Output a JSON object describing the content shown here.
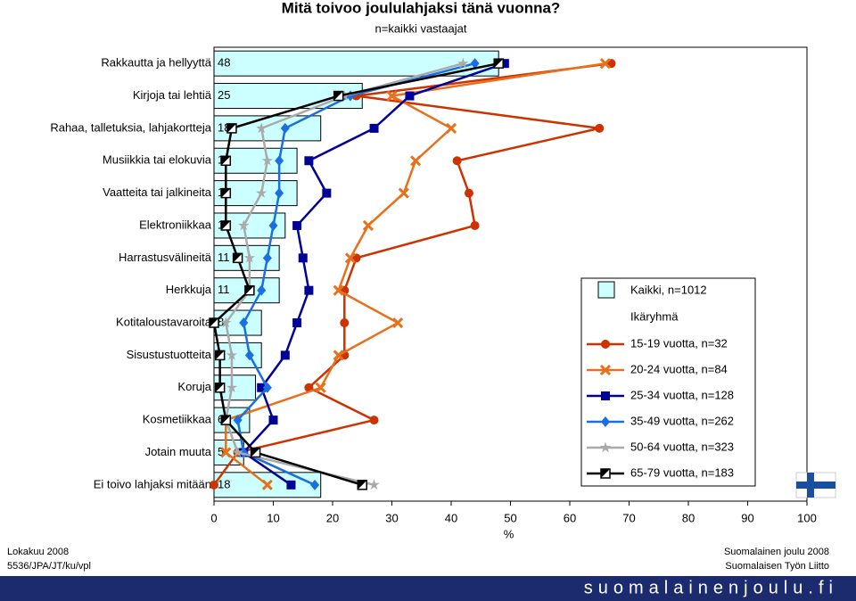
{
  "chart_data": {
    "type": "bar_profile",
    "title": "Mitä toivoo joululahjaksi tänä vuonna?",
    "subtitle": "n=kaikki vastaajat",
    "categories": [
      "Rakkautta ja hellyyttä",
      "Kirjoja tai lehtiä",
      "Rahaa, talletuksia, lahjakortteja",
      "Musiikkia tai elokuvia",
      "Vaatteita tai jalkineita",
      "Elektroniikkaa",
      "Harrastusvälineitä",
      "Herkkuja",
      "Kotitaloustavaroita",
      "Sisustustuotteita",
      "Koruja",
      "Kosmetiikkaa",
      "Jotain muuta",
      "Ei toivo lahjaksi mitään"
    ],
    "bar_series": {
      "name": "Kaikki, n=1012",
      "color": "#ccffff",
      "values": [
        48,
        25,
        18,
        14,
        14,
        12,
        11,
        11,
        8,
        8,
        7,
        6,
        5,
        18
      ]
    },
    "legend_title": "Ikäryhmä",
    "series": [
      {
        "name": "15-19 vuotta, n=32",
        "color": "#cc3300",
        "marker": "circle",
        "values": [
          67,
          24,
          65,
          41,
          43,
          44,
          24,
          22,
          22,
          22,
          16,
          27,
          4,
          0
        ]
      },
      {
        "name": "20-24 vuotta, n=84",
        "color": "#e8701a",
        "marker": "x",
        "values": [
          66,
          30,
          40,
          34,
          32,
          26,
          23,
          21,
          31,
          21,
          18,
          2,
          2,
          9
        ]
      },
      {
        "name": "25-34 vuotta, n=128",
        "color": "#000099",
        "marker": "square",
        "values": [
          49,
          33,
          27,
          16,
          19,
          14,
          15,
          16,
          14,
          12,
          8,
          10,
          5,
          13
        ]
      },
      {
        "name": "35-49 vuotta, n=262",
        "color": "#1a6fe0",
        "marker": "diamond",
        "values": [
          44,
          23,
          12,
          11,
          11,
          10,
          9,
          8,
          5,
          6,
          9,
          4,
          5,
          17
        ]
      },
      {
        "name": "50-64 vuotta, n=323",
        "color": "#aaaaaa",
        "marker": "star",
        "values": [
          42,
          22,
          8,
          9,
          8,
          5,
          6,
          6,
          2,
          3,
          3,
          2,
          4,
          27
        ]
      },
      {
        "name": "65-79 vuotta, n=183",
        "color": "#000000",
        "marker": "halfsquare",
        "values": [
          48,
          21,
          3,
          2,
          2,
          2,
          4,
          6,
          0,
          1,
          1,
          2,
          7,
          25
        ]
      }
    ],
    "xlabel": "%",
    "xlim": [
      0,
      100
    ],
    "xticks": [
      0,
      10,
      20,
      30,
      40,
      50,
      60,
      70,
      80,
      90,
      100
    ]
  },
  "footer": {
    "left1": "Lokakuu 2008",
    "left2": "5536/JPA/JT/ku/vpl",
    "right1": "Suomalainen joulu 2008",
    "right2": "Suomalaisen Työn Liitto",
    "site": "suomalainenjoulu.fi"
  }
}
